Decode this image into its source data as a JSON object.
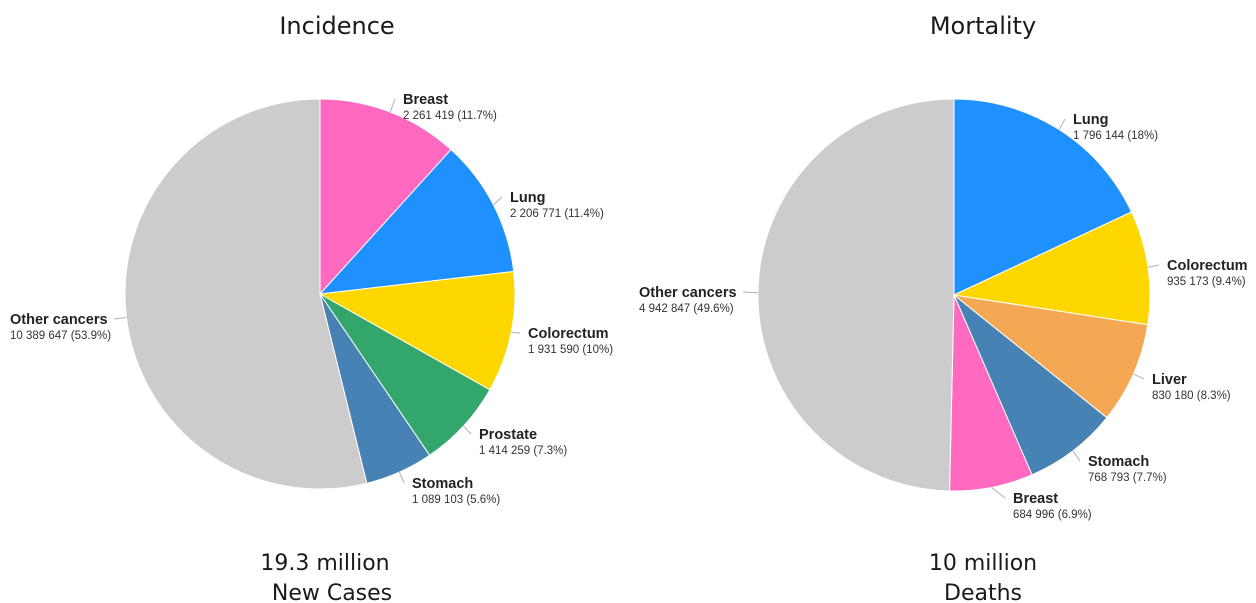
{
  "chart_data": [
    {
      "type": "pie",
      "title": "Incidence",
      "total_line1": "19.3 million",
      "total_line2": "New Cases",
      "slices": [
        {
          "name": "Breast",
          "value": 2261419,
          "value_text": "2 261 419 (11.7%)",
          "percent": 11.7,
          "color": "#ff69c0"
        },
        {
          "name": "Lung",
          "value": 2206771,
          "value_text": "2 206 771 (11.4%)",
          "percent": 11.4,
          "color": "#1e90ff"
        },
        {
          "name": "Colorectum",
          "value": 1931590,
          "value_text": "1 931 590 (10%)",
          "percent": 10.0,
          "color": "#ffd700"
        },
        {
          "name": "Prostate",
          "value": 1414259,
          "value_text": "1 414 259 (7.3%)",
          "percent": 7.3,
          "color": "#33a66b"
        },
        {
          "name": "Stomach",
          "value": 1089103,
          "value_text": "1 089 103 (5.6%)",
          "percent": 5.6,
          "color": "#4682b4"
        },
        {
          "name": "Other cancers",
          "value": 10389647,
          "value_text": "10 389 647 (53.9%)",
          "percent": 53.9,
          "color": "#cccccc"
        }
      ]
    },
    {
      "type": "pie",
      "title": "Mortality",
      "total_line1": "10 million",
      "total_line2": "Deaths",
      "slices": [
        {
          "name": "Lung",
          "value": 1796144,
          "value_text": "1 796 144 (18%)",
          "percent": 18.0,
          "color": "#1e90ff"
        },
        {
          "name": "Colorectum",
          "value": 935173,
          "value_text": "935 173 (9.4%)",
          "percent": 9.4,
          "color": "#ffd700"
        },
        {
          "name": "Liver",
          "value": 830180,
          "value_text": "830 180 (8.3%)",
          "percent": 8.3,
          "color": "#f4a853"
        },
        {
          "name": "Stomach",
          "value": 768793,
          "value_text": "768 793 (7.7%)",
          "percent": 7.7,
          "color": "#4682b4"
        },
        {
          "name": "Breast",
          "value": 684996,
          "value_text": "684 996 (6.9%)",
          "percent": 6.9,
          "color": "#ff69c0"
        },
        {
          "name": "Other cancers",
          "value": 4942847,
          "value_text": "4 942 847 (49.6%)",
          "percent": 49.6,
          "color": "#cccccc"
        }
      ]
    }
  ]
}
